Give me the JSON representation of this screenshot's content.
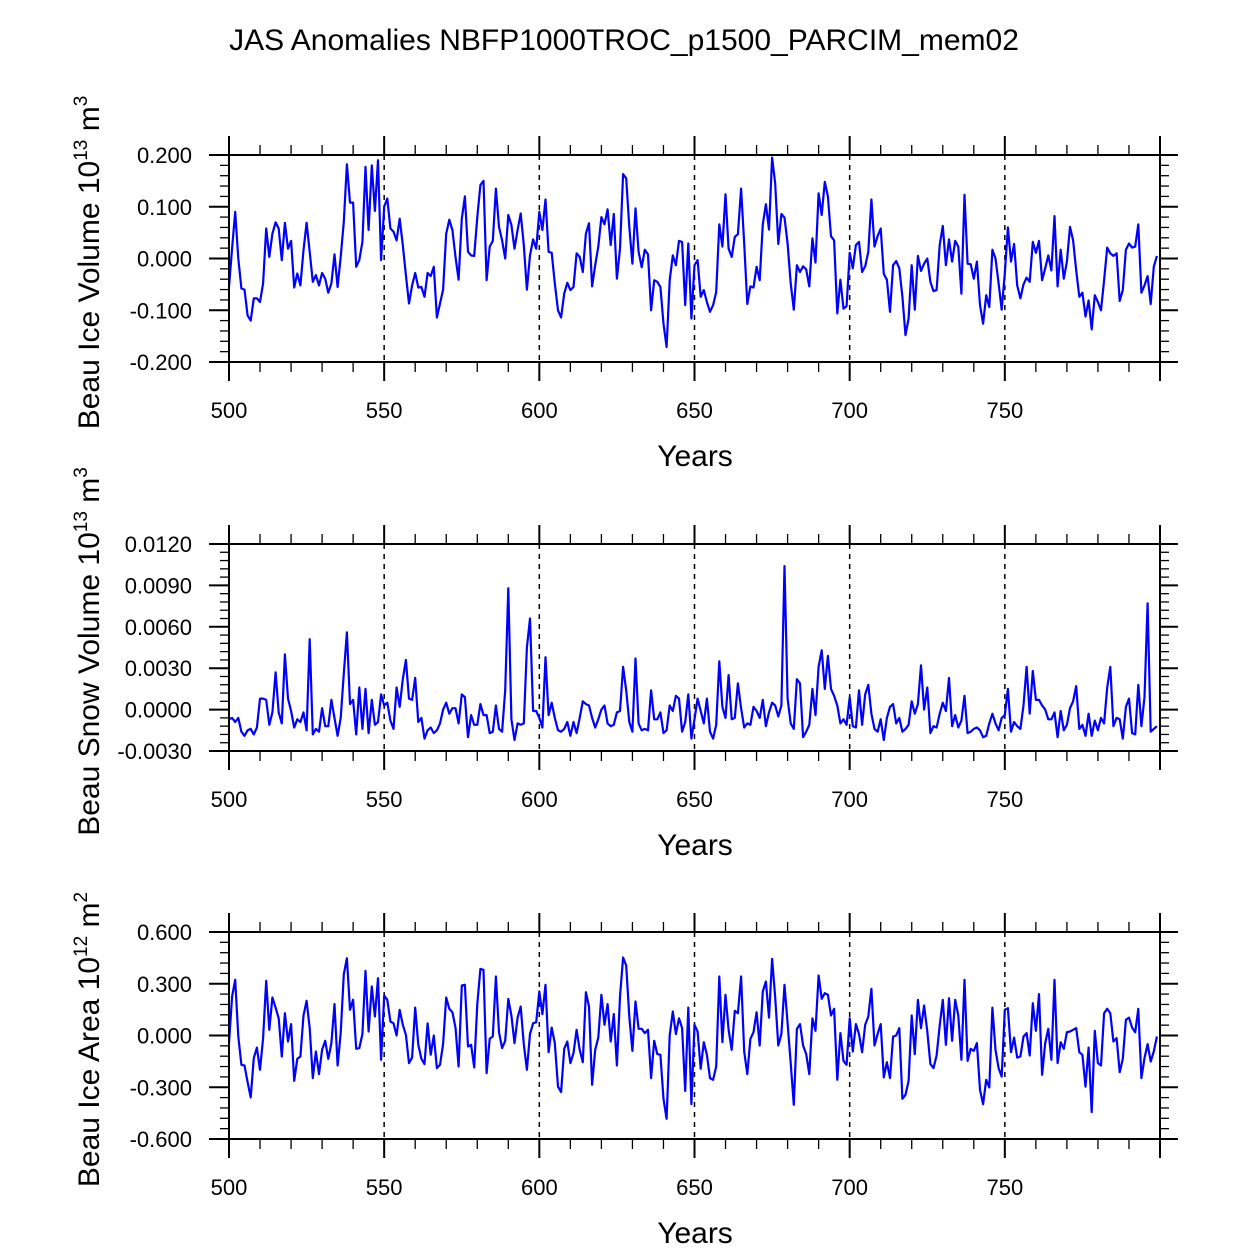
{
  "title": "JAS Anomalies NBFP1000TROC_p1500_PARCIM_mem02",
  "colors": {
    "series": "#0000ff",
    "axes": "#000000",
    "reference_lines": "#000000"
  },
  "chart_data": [
    {
      "type": "line",
      "xlabel": "Years",
      "ylabel": {
        "main": "Beau Ice Volume 10",
        "exp": "13",
        "unit": " m",
        "unit_exp": "3"
      },
      "xlim": [
        500,
        800
      ],
      "ylim": [
        -0.2,
        0.2
      ],
      "xticks": [
        500,
        550,
        600,
        650,
        700,
        750
      ],
      "xtick_labels": [
        "500",
        "550",
        "600",
        "650",
        "700",
        "750"
      ],
      "yticks": [
        0.2,
        0.1,
        0.0,
        -0.1,
        -0.2
      ],
      "ytick_labels": [
        "0.200",
        "0.100",
        "0.000",
        "-0.100",
        "-0.200"
      ],
      "reference_lines_x": [
        550,
        600,
        650,
        700,
        750
      ],
      "grid": false,
      "x_start": 500,
      "values": [
        -0.055,
        0.02,
        0.09,
        0.0,
        -0.058,
        -0.06,
        -0.11,
        -0.12,
        -0.077,
        -0.077,
        -0.084,
        -0.048,
        0.058,
        0.003,
        0.048,
        0.07,
        0.058,
        -0.003,
        0.069,
        0.019,
        0.034,
        -0.056,
        -0.029,
        -0.052,
        0.016,
        0.069,
        0.013,
        -0.045,
        -0.032,
        -0.052,
        -0.028,
        -0.039,
        -0.066,
        -0.048,
        0.008,
        -0.055,
        0.003,
        0.071,
        0.182,
        0.108,
        0.108,
        -0.016,
        -0.003,
        0.032,
        0.177,
        0.055,
        0.18,
        0.092,
        0.19,
        -0.003,
        0.1,
        0.116,
        0.058,
        0.052,
        0.035,
        0.077,
        0.026,
        -0.032,
        -0.087,
        -0.052,
        -0.028,
        -0.056,
        -0.055,
        -0.074,
        -0.028,
        -0.034,
        -0.016,
        -0.114,
        -0.087,
        -0.06,
        0.048,
        0.075,
        0.055,
        0.003,
        -0.041,
        0.077,
        0.12,
        0.013,
        0.006,
        0.005,
        0.08,
        0.142,
        0.15,
        -0.042,
        0.023,
        0.034,
        0.135,
        0.061,
        0.035,
        0.0,
        0.084,
        0.065,
        0.019,
        0.055,
        0.087,
        0.026,
        -0.06,
        0.006,
        0.037,
        0.019,
        0.09,
        0.055,
        0.114,
        0.013,
        0.011,
        -0.048,
        -0.1,
        -0.114,
        -0.068,
        -0.047,
        -0.061,
        -0.055,
        0.01,
        0.003,
        -0.026,
        0.048,
        0.068,
        -0.054,
        -0.013,
        0.023,
        0.08,
        0.066,
        0.095,
        0.026,
        0.086,
        -0.039,
        0.019,
        0.163,
        0.155,
        0.061,
        -0.01,
        0.097,
        0.013,
        -0.017,
        0.017,
        0.008,
        -0.1,
        -0.042,
        -0.045,
        -0.055,
        -0.126,
        -0.171,
        -0.042,
        0.006,
        -0.013,
        0.034,
        0.032,
        -0.09,
        0.029,
        -0.116,
        -0.013,
        -0.003,
        -0.074,
        -0.061,
        -0.084,
        -0.103,
        -0.09,
        -0.065,
        0.066,
        0.023,
        0.124,
        0.019,
        0.003,
        0.042,
        0.047,
        0.135,
        0.029,
        -0.088,
        -0.054,
        -0.056,
        -0.016,
        -0.042,
        0.066,
        0.105,
        0.056,
        0.195,
        0.145,
        0.028,
        0.086,
        0.079,
        0.029,
        -0.048,
        -0.099,
        -0.013,
        -0.026,
        -0.015,
        -0.021,
        -0.054,
        0.039,
        -0.008,
        0.126,
        0.084,
        0.148,
        0.12,
        0.043,
        0.035,
        -0.106,
        -0.041,
        -0.097,
        -0.092,
        0.011,
        -0.019,
        0.026,
        0.032,
        -0.026,
        -0.015,
        0.013,
        0.114,
        0.023,
        0.043,
        0.058,
        -0.03,
        -0.041,
        -0.103,
        -0.013,
        -0.005,
        -0.019,
        -0.074,
        -0.148,
        -0.116,
        -0.013,
        -0.099,
        0.005,
        -0.024,
        -0.01,
        0.0,
        -0.045,
        -0.063,
        -0.061,
        0.026,
        0.063,
        -0.013,
        0.037,
        -0.006,
        0.034,
        0.023,
        -0.068,
        0.123,
        -0.01,
        -0.011,
        -0.039,
        -0.006,
        -0.09,
        -0.126,
        -0.071,
        -0.094,
        0.017,
        0.0,
        -0.048,
        -0.099,
        -0.029,
        0.06,
        -0.006,
        0.028,
        -0.052,
        -0.077,
        -0.05,
        -0.037,
        -0.045,
        0.032,
        0.011,
        0.034,
        -0.042,
        -0.019,
        0.006,
        -0.023,
        0.082,
        -0.054,
        0.017,
        -0.039,
        -0.006,
        0.061,
        0.035,
        -0.023,
        -0.074,
        -0.066,
        -0.112,
        -0.081,
        -0.137,
        -0.071,
        -0.084,
        -0.1,
        -0.042,
        0.021,
        0.01,
        0.005,
        0.01,
        -0.082,
        -0.061,
        0.017,
        0.029,
        0.021,
        0.023,
        0.066,
        -0.066,
        -0.052,
        -0.034,
        -0.088,
        -0.016,
        0.005
      ]
    },
    {
      "type": "line",
      "xlabel": "Years",
      "ylabel": {
        "main": "Beau Snow Volume 10",
        "exp": "13",
        "unit": " m",
        "unit_exp": "3"
      },
      "xlim": [
        500,
        800
      ],
      "ylim": [
        -0.003,
        0.012
      ],
      "xticks": [
        500,
        550,
        600,
        650,
        700,
        750
      ],
      "xtick_labels": [
        "500",
        "550",
        "600",
        "650",
        "700",
        "750"
      ],
      "yticks": [
        0.012,
        0.009,
        0.006,
        0.003,
        0.0,
        -0.003
      ],
      "ytick_labels": [
        "0.0120",
        "0.0090",
        "0.0060",
        "0.0030",
        "0.0000",
        "-0.0030"
      ],
      "reference_lines_x": [
        550,
        600,
        650,
        700,
        750
      ],
      "grid": false,
      "x_start": 500,
      "values": [
        -0.0007,
        -0.0006,
        -0.0009,
        -0.0006,
        -0.0016,
        -0.0019,
        -0.0015,
        -0.0014,
        -0.0018,
        -0.0013,
        0.0008,
        0.0008,
        0.0007,
        -0.0011,
        -0.0002,
        0.0027,
        -0.0002,
        -0.001,
        0.004,
        0.0008,
        -0.0001,
        -0.0013,
        -0.0007,
        -0.0009,
        -0.0002,
        -0.0015,
        0.0051,
        -0.0018,
        -0.0014,
        -0.0016,
        0.0001,
        -0.0012,
        -0.0012,
        0.0007,
        -0.0006,
        -0.0019,
        -0.0006,
        0.0026,
        0.0056,
        0.0004,
        0.0007,
        -0.0018,
        0.0016,
        -0.0014,
        0.0015,
        -0.0017,
        0.0007,
        -0.0011,
        -0.0009,
        0.0011,
        0.0003,
        0.0005,
        -0.0008,
        -0.0014,
        0.0016,
        0.0002,
        0.0022,
        0.0036,
        0.0008,
        0.0007,
        0.0023,
        -0.0009,
        -0.0006,
        -0.0021,
        -0.0015,
        -0.0013,
        -0.0017,
        -0.0015,
        -0.001,
        0.0,
        0.0005,
        -0.0003,
        0.0001,
        0.0001,
        -0.001,
        0.0011,
        0.0009,
        -0.002,
        -0.0004,
        -0.0011,
        -0.0011,
        0.0004,
        -0.0004,
        -0.0004,
        -0.0017,
        -0.0016,
        0.0003,
        -0.0014,
        -0.0016,
        0.0014,
        0.0088,
        -0.0007,
        -0.0022,
        -0.001,
        -0.0011,
        -0.001,
        0.0045,
        0.0066,
        -0.0001,
        -0.0001,
        -0.0006,
        -0.0013,
        0.0038,
        -0.0004,
        0.0005,
        -0.0006,
        -0.0015,
        -0.0016,
        -0.0014,
        -0.0009,
        -0.0019,
        -0.0009,
        -0.0017,
        -0.0006,
        0.0006,
        0.0004,
        0.0003,
        -0.0006,
        -0.0013,
        -0.0007,
        0.0,
        0.0003,
        -0.001,
        -0.0012,
        -0.0011,
        -0.0002,
        -0.0001,
        0.0031,
        0.0014,
        -0.0009,
        -0.0016,
        0.0037,
        -0.001,
        -0.0015,
        -0.0014,
        -0.0015,
        0.0014,
        -0.0007,
        -0.0007,
        -0.0002,
        -0.0017,
        -0.0015,
        0.0003,
        -0.0001,
        0.001,
        0.0008,
        -0.0016,
        -0.0009,
        0.0011,
        -0.0021,
        -0.0007,
        0.0008,
        -0.0001,
        -0.001,
        0.0008,
        -0.0016,
        -0.0021,
        -0.0011,
        0.0035,
        0.0002,
        -0.0006,
        0.0025,
        -0.0007,
        -0.0006,
        0.0019,
        0.0001,
        -0.0013,
        -0.001,
        -0.0011,
        0.0002,
        -0.0001,
        -0.0006,
        0.0007,
        -0.0012,
        -0.0002,
        0.0005,
        0.0003,
        -0.0005,
        0.0003,
        0.0104,
        0.0008,
        -0.001,
        -0.0014,
        0.0022,
        0.0019,
        -0.002,
        -0.0016,
        -0.0011,
        0.0015,
        -0.0004,
        0.0031,
        0.0043,
        0.0015,
        0.0039,
        0.0015,
        0.001,
        0.0003,
        -0.001,
        -0.0007,
        -0.0011,
        0.0009,
        -0.0012,
        -0.0013,
        0.0014,
        -0.0011,
        0.0011,
        0.0018,
        -0.0003,
        -0.0014,
        -0.0016,
        -0.0007,
        -0.0022,
        -0.0006,
        0.0002,
        0.0004,
        -0.001,
        -0.0006,
        -0.0016,
        -0.0014,
        -0.0011,
        0.0006,
        -0.0003,
        0.0004,
        0.0032,
        0.0,
        0.0016,
        -0.0017,
        -0.0012,
        -0.0013,
        -0.0003,
        0.0005,
        -0.0001,
        0.0023,
        -0.0012,
        -0.0004,
        -0.0013,
        -0.0008,
        0.001,
        -0.0017,
        -0.0016,
        -0.0014,
        -0.0013,
        -0.0015,
        -0.002,
        -0.0019,
        -0.001,
        -0.0003,
        -0.001,
        -0.0015,
        -0.0006,
        -0.0004,
        0.0015,
        -0.0016,
        -0.0009,
        -0.0012,
        -0.0014,
        0.0003,
        0.0031,
        -0.0003,
        0.0028,
        0.0007,
        0.0007,
        0.0003,
        0.0,
        -0.0007,
        -0.0007,
        -0.0002,
        -0.002,
        -0.0001,
        -0.0015,
        -0.0011,
        0.0001,
        0.0006,
        0.0017,
        -0.0014,
        -0.0011,
        -0.0019,
        -0.0003,
        -0.0019,
        -0.0008,
        -0.0015,
        -0.0006,
        -0.001,
        0.0016,
        0.0031,
        -0.0012,
        -0.0006,
        -0.0007,
        -0.0021,
        0.0002,
        0.0008,
        -0.0017,
        -0.0018,
        0.0018,
        -0.0012,
        0.0009,
        0.0077,
        -0.0016,
        -0.0014,
        -0.0012
      ]
    },
    {
      "type": "line",
      "xlabel": "Years",
      "ylabel": {
        "main": "Beau Ice Area 10",
        "exp": "12",
        "unit": " m",
        "unit_exp": "2"
      },
      "xlim": [
        500,
        800
      ],
      "ylim": [
        -0.6,
        0.6
      ],
      "xticks": [
        500,
        550,
        600,
        650,
        700,
        750
      ],
      "xtick_labels": [
        "500",
        "550",
        "600",
        "650",
        "700",
        "750"
      ],
      "yticks": [
        0.6,
        0.3,
        0.0,
        -0.3,
        -0.6
      ],
      "ytick_labels": [
        "0.600",
        "0.300",
        "0.000",
        "-0.300",
        "-0.600"
      ],
      "reference_lines_x": [
        550,
        600,
        650,
        700,
        750
      ],
      "grid": false,
      "x_start": 500,
      "values": [
        -0.044,
        0.226,
        0.323,
        -0.006,
        -0.17,
        -0.174,
        -0.27,
        -0.359,
        -0.131,
        -0.07,
        -0.199,
        -0.015,
        0.317,
        0.033,
        0.22,
        0.162,
        0.1,
        -0.122,
        0.129,
        -0.035,
        0.066,
        -0.263,
        -0.135,
        -0.122,
        0.116,
        0.201,
        0.043,
        -0.247,
        -0.093,
        -0.224,
        -0.083,
        -0.031,
        -0.135,
        -0.044,
        0.182,
        -0.174,
        0.014,
        0.355,
        0.448,
        0.149,
        0.207,
        -0.077,
        -0.073,
        0.008,
        0.375,
        0.023,
        0.284,
        0.11,
        0.332,
        -0.141,
        0.232,
        0.207,
        0.081,
        0.071,
        0.0,
        0.149,
        0.062,
        0.004,
        -0.16,
        -0.128,
        0.162,
        -0.054,
        -0.135,
        -0.166,
        0.071,
        -0.112,
        0.0,
        -0.189,
        -0.17,
        -0.05,
        0.22,
        0.155,
        0.135,
        0.046,
        -0.18,
        0.29,
        0.294,
        -0.064,
        -0.054,
        -0.185,
        0.182,
        0.386,
        0.381,
        -0.218,
        -0.019,
        -0.006,
        0.342,
        0.019,
        -0.073,
        -0.031,
        0.213,
        0.116,
        -0.044,
        0.104,
        0.168,
        -0.05,
        -0.199,
        0.008,
        0.071,
        0.077,
        0.255,
        0.124,
        0.294,
        -0.097,
        0.046,
        -0.044,
        -0.296,
        -0.328,
        -0.077,
        -0.035,
        -0.16,
        -0.102,
        0.033,
        -0.083,
        -0.155,
        0.251,
        0.168,
        -0.286,
        -0.083,
        -0.012,
        0.236,
        0.062,
        0.182,
        -0.035,
        0.124,
        -0.174,
        0.226,
        0.452,
        0.406,
        0.11,
        -0.089,
        0.197,
        0.039,
        0.039,
        0.014,
        0.033,
        -0.247,
        -0.031,
        -0.108,
        -0.112,
        -0.367,
        -0.483,
        0.0,
        0.139,
        0.008,
        0.1,
        0.043,
        -0.321,
        0.162,
        -0.398,
        0.062,
        0.023,
        -0.193,
        -0.039,
        -0.112,
        -0.247,
        -0.257,
        -0.18,
        0.342,
        -0.039,
        0.236,
        0.033,
        -0.083,
        0.143,
        0.129,
        0.342,
        -0.093,
        -0.224,
        -0.019,
        0.019,
        0.135,
        -0.058,
        0.255,
        0.313,
        0.104,
        0.444,
        0.22,
        -0.058,
        0.008,
        0.294,
        0.071,
        -0.16,
        -0.402,
        0.039,
        0.066,
        -0.058,
        -0.108,
        -0.224,
        0.1,
        0.027,
        0.348,
        0.213,
        0.245,
        0.236,
        0.116,
        0.155,
        -0.257,
        0.014,
        -0.147,
        -0.17,
        0.1,
        -0.093,
        0.066,
        0.008,
        -0.097,
        0.062,
        0.11,
        0.27,
        -0.058,
        0.008,
        0.066,
        -0.243,
        -0.155,
        -0.247,
        -0.006,
        0.0,
        0.043,
        -0.367,
        -0.344,
        -0.263,
        0.116,
        -0.108,
        0.207,
        0.043,
        0.174,
        0.023,
        -0.166,
        -0.189,
        -0.116,
        0.058,
        0.207,
        -0.054,
        0.216,
        -0.031,
        0.207,
        0.116,
        -0.141,
        0.323,
        -0.147,
        -0.077,
        -0.089,
        -0.044,
        -0.315,
        -0.398,
        -0.257,
        -0.301,
        0.162,
        -0.083,
        -0.189,
        -0.238,
        0.149,
        0.158,
        -0.097,
        -0.012,
        -0.128,
        -0.122,
        -0.006,
        0.014,
        -0.116,
        0.187,
        0.027,
        0.24,
        -0.228,
        -0.044,
        0.039,
        -0.141,
        0.323,
        -0.16,
        -0.039,
        -0.077,
        0.019,
        0.023,
        0.033,
        0.043,
        -0.097,
        -0.112,
        -0.296,
        -0.07,
        -0.444,
        0.027,
        -0.16,
        -0.174,
        0.129,
        0.155,
        0.129,
        -0.035,
        -0.015,
        -0.213,
        -0.135,
        0.091,
        0.104,
        0.046,
        0.019,
        0.155,
        -0.247,
        -0.131,
        -0.05,
        -0.151,
        -0.093,
        -0.006
      ]
    }
  ]
}
